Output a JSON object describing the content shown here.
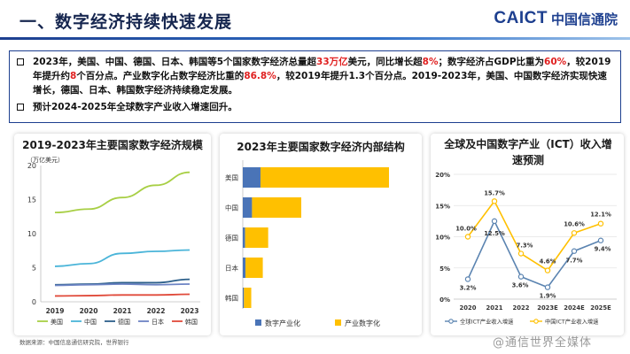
{
  "header": {
    "title": "一、数字经济持续快速发展",
    "logo_en": "CAICT",
    "logo_cn": "中国信通院"
  },
  "summary": {
    "bullet1": [
      {
        "t": "2023年，美国、中国、德国、日本、韩国等5个国家数字经济总量超"
      },
      {
        "t": "33万亿",
        "red": true
      },
      {
        "t": "美元，同比增长超"
      },
      {
        "t": "8%",
        "red": true
      },
      {
        "t": "；数字经济占GDP比重为"
      },
      {
        "t": "60%",
        "red": true
      },
      {
        "t": "，较2019年提升约"
      },
      {
        "t": "8",
        "red": true
      },
      {
        "t": "个百分点。产业数字化占数字经济比重的"
      },
      {
        "t": "86.8%",
        "red": true
      },
      {
        "t": "，较2019年提升1.3个百分点。2019-2023年，美国、中国数字经济实现快速增长，德国、日本、韩国数字经济持续稳定发展。"
      }
    ],
    "bullet2": "预计2024-2025年全球数字产业收入增速回升。"
  },
  "colors": {
    "us": "#a8cf45",
    "cn": "#4bb5d9",
    "de": "#2c5f8a",
    "jp": "#6d84c4",
    "kr": "#e04a3a",
    "digital_industry": "#4a74b7",
    "industry_digital": "#ffc000",
    "global_ict": "#5b84b1",
    "china_ict": "#ffc000"
  },
  "source": "数据来源：中国信息通信研究院，世界银行",
  "watermark": "@通信世界全媒体",
  "chart_data": [
    {
      "type": "line",
      "title": "2019-2023年主要国家数字经济规模",
      "unit": "（万亿美元）",
      "x": [
        "2019",
        "2020",
        "2021",
        "2022",
        "2023"
      ],
      "ylim": [
        0,
        20
      ],
      "yticks": [
        0,
        5,
        10,
        15,
        20
      ],
      "series": [
        {
          "name": "美国",
          "color_key": "us",
          "values": [
            13.1,
            13.6,
            15.3,
            17.1,
            19.0
          ]
        },
        {
          "name": "中国",
          "color_key": "cn",
          "values": [
            5.2,
            5.6,
            7.1,
            7.4,
            7.6
          ]
        },
        {
          "name": "德国",
          "color_key": "de",
          "values": [
            2.5,
            2.6,
            2.8,
            2.8,
            3.3
          ]
        },
        {
          "name": "日本",
          "color_key": "jp",
          "values": [
            2.4,
            2.5,
            2.6,
            2.5,
            2.6
          ]
        },
        {
          "name": "韩国",
          "color_key": "kr",
          "values": [
            0.85,
            0.9,
            1.0,
            1.0,
            1.1
          ]
        }
      ],
      "grid": false,
      "legend": "bottom"
    },
    {
      "type": "bar",
      "orientation": "horizontal",
      "stacked": true,
      "title": "2023年主要国家数字经济内部结构",
      "categories": [
        "美国",
        "中国",
        "德国",
        "日本",
        "韩国"
      ],
      "series": [
        {
          "name": "数字产业化",
          "color_key": "digital_industry",
          "values": [
            2.3,
            1.2,
            0.3,
            0.35,
            0.15
          ]
        },
        {
          "name": "产业数字化",
          "color_key": "industry_digital",
          "values": [
            16.7,
            6.4,
            3.0,
            2.25,
            0.95
          ]
        }
      ],
      "legend": "bottom"
    },
    {
      "type": "line",
      "title": "全球及中国数字产业（ICT）收入增速预测",
      "x": [
        "2020",
        "2021",
        "2022",
        "2023E",
        "2024E",
        "2025E"
      ],
      "ylim": [
        0,
        20
      ],
      "yticks": [
        "0%",
        "5%",
        "10%",
        "15%",
        "20%"
      ],
      "series": [
        {
          "name": "全球ICT产业收入增速",
          "color_key": "global_ict",
          "values": [
            3.2,
            12.5,
            3.6,
            1.9,
            7.7,
            9.4
          ],
          "labels": [
            "3.2%",
            "12.5%",
            "3.6%",
            "1.9%",
            "7.7%",
            "9.4%"
          ]
        },
        {
          "name": "中国ICT产业收入增速",
          "color_key": "china_ict",
          "values": [
            10.0,
            15.7,
            7.3,
            4.6,
            10.6,
            12.1
          ],
          "labels": [
            "10.0%",
            "15.7%",
            "7.3%",
            "4.6%",
            "10.6%",
            "12.1%"
          ]
        }
      ],
      "legend": "bottom"
    }
  ]
}
